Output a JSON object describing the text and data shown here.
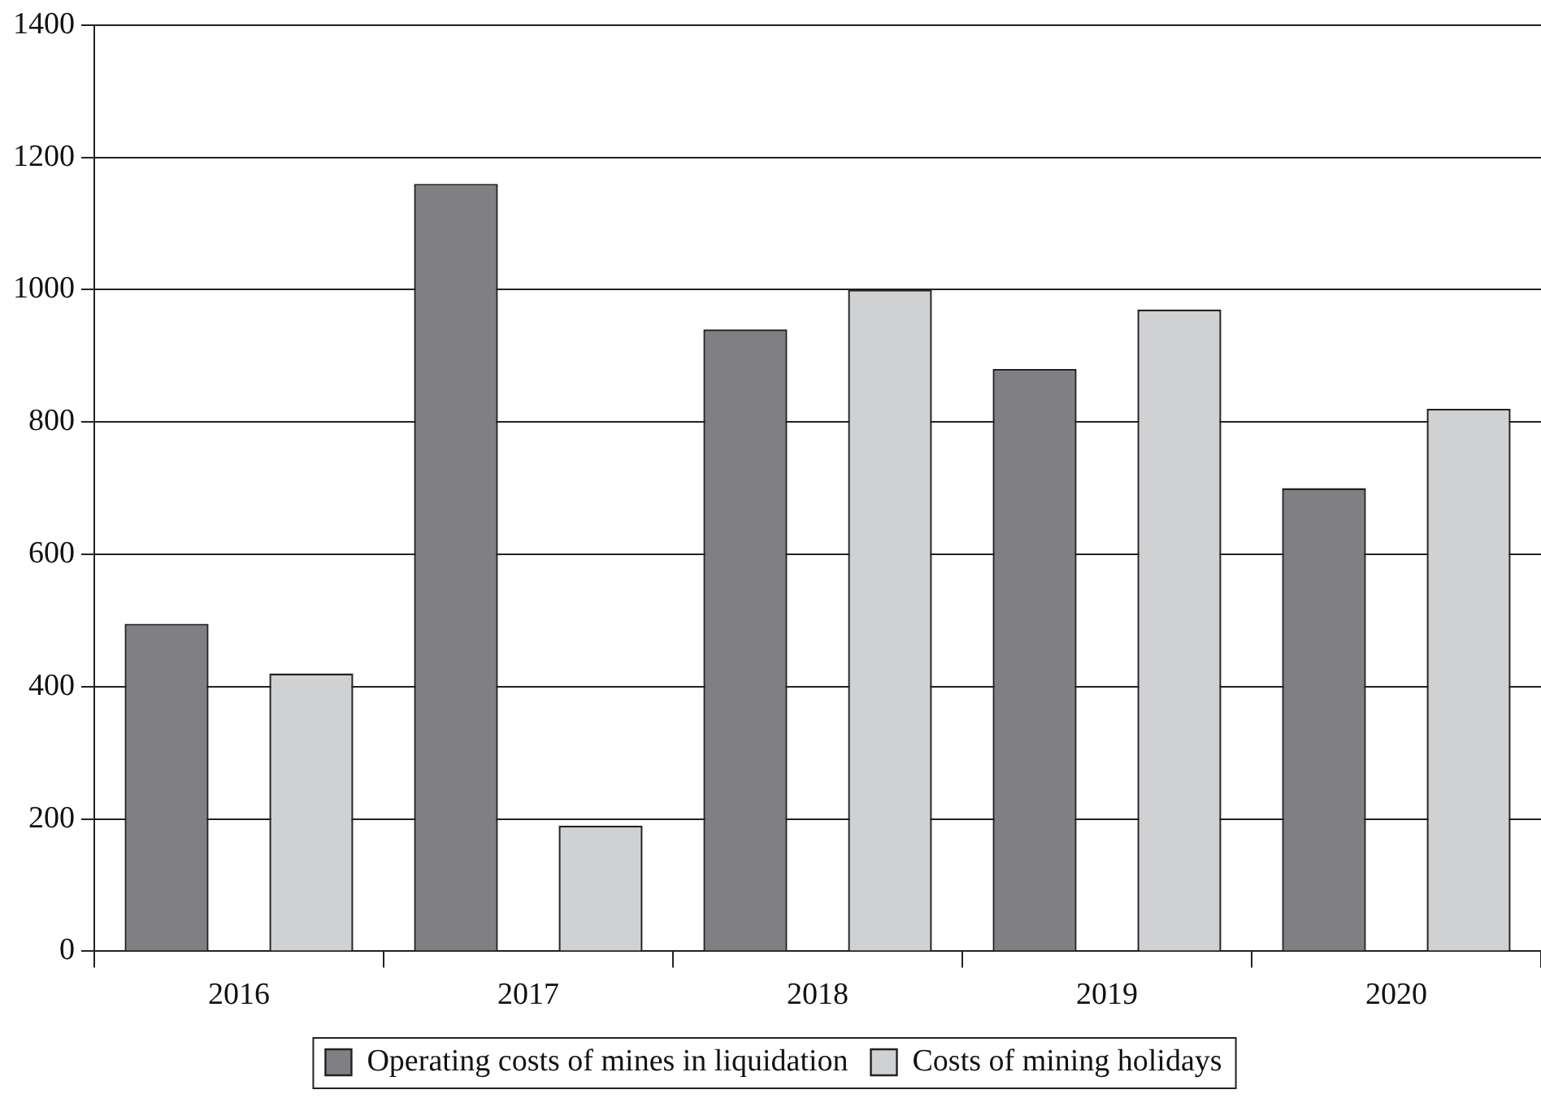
{
  "chart_data": {
    "type": "bar",
    "categories": [
      "2016",
      "2017",
      "2018",
      "2019",
      "2020"
    ],
    "series": [
      {
        "name": "Operating costs of mines in liquidation",
        "color": "#808084",
        "values": [
          495,
          1160,
          940,
          880,
          700
        ]
      },
      {
        "name": "Costs of mining holidays",
        "color": "#d0d1d3",
        "values": [
          420,
          190,
          1000,
          970,
          820
        ]
      }
    ],
    "ylim": [
      0,
      1400
    ],
    "yticks": [
      0,
      200,
      400,
      600,
      800,
      1000,
      1200,
      1400
    ],
    "grid": "y",
    "legend": "bottom"
  }
}
